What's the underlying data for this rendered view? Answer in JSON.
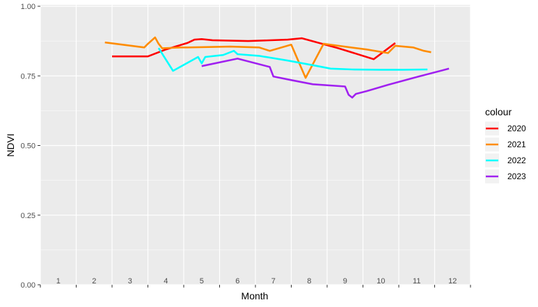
{
  "chart_data": {
    "type": "line",
    "title": "",
    "xlabel": "Month",
    "ylabel": "NDVI",
    "xlim": [
      0.5,
      12.5
    ],
    "ylim": [
      0,
      1
    ],
    "y_ticks": [
      {
        "value": 0,
        "label": "0.00"
      },
      {
        "value": 0.25,
        "label": "0.25"
      },
      {
        "value": 0.5,
        "label": "0.50"
      },
      {
        "value": 0.75,
        "label": "0.75"
      },
      {
        "value": 1,
        "label": "1.00"
      }
    ],
    "x_month_labels": [
      "1",
      "2",
      "3",
      "4",
      "5",
      "6",
      "7",
      "8",
      "9",
      "10",
      "11",
      "12"
    ],
    "grid": true,
    "legend": {
      "title": "colour",
      "position": "right"
    },
    "series": [
      {
        "name": "2020",
        "color": "#ff0000",
        "points": [
          [
            2.5,
            0.82
          ],
          [
            3.5,
            0.82
          ],
          [
            4.0,
            0.845
          ],
          [
            4.6,
            0.868
          ],
          [
            4.8,
            0.88
          ],
          [
            5.0,
            0.882
          ],
          [
            5.3,
            0.878
          ],
          [
            6.3,
            0.875
          ],
          [
            7.4,
            0.88
          ],
          [
            7.8,
            0.885
          ],
          [
            8.8,
            0.85
          ],
          [
            9.8,
            0.81
          ],
          [
            10.4,
            0.868
          ]
        ]
      },
      {
        "name": "2021",
        "color": "#ff8c00",
        "points": [
          [
            2.3,
            0.87
          ],
          [
            3.4,
            0.852
          ],
          [
            3.5,
            0.865
          ],
          [
            3.7,
            0.888
          ],
          [
            3.8,
            0.865
          ],
          [
            3.9,
            0.849
          ],
          [
            4.4,
            0.852
          ],
          [
            4.6,
            0.852
          ],
          [
            5.8,
            0.855
          ],
          [
            6.6,
            0.852
          ],
          [
            6.9,
            0.84
          ],
          [
            7.5,
            0.862
          ],
          [
            7.9,
            0.743
          ],
          [
            8.4,
            0.865
          ],
          [
            9.6,
            0.845
          ],
          [
            10.2,
            0.832
          ],
          [
            10.4,
            0.858
          ],
          [
            10.9,
            0.852
          ],
          [
            11.2,
            0.84
          ],
          [
            11.4,
            0.835
          ]
        ]
      },
      {
        "name": "2022",
        "color": "#00ffff",
        "points": [
          [
            3.8,
            0.85
          ],
          [
            4.2,
            0.768
          ],
          [
            4.9,
            0.818
          ],
          [
            5.0,
            0.795
          ],
          [
            5.1,
            0.818
          ],
          [
            5.6,
            0.825
          ],
          [
            5.8,
            0.835
          ],
          [
            5.9,
            0.84
          ],
          [
            6.0,
            0.828
          ],
          [
            6.6,
            0.822
          ],
          [
            7.4,
            0.805
          ],
          [
            8.2,
            0.786
          ],
          [
            8.6,
            0.776
          ],
          [
            9.2,
            0.773
          ],
          [
            10.0,
            0.772
          ],
          [
            10.6,
            0.772
          ],
          [
            11.3,
            0.773
          ]
        ]
      },
      {
        "name": "2023",
        "color": "#a020f0",
        "points": [
          [
            5.0,
            0.785
          ],
          [
            6.0,
            0.812
          ],
          [
            6.9,
            0.782
          ],
          [
            7.0,
            0.748
          ],
          [
            7.5,
            0.735
          ],
          [
            8.1,
            0.72
          ],
          [
            9.0,
            0.712
          ],
          [
            9.1,
            0.682
          ],
          [
            9.2,
            0.672
          ],
          [
            9.3,
            0.685
          ],
          [
            9.6,
            0.695
          ],
          [
            10.2,
            0.718
          ],
          [
            11.0,
            0.746
          ],
          [
            11.9,
            0.776
          ]
        ]
      }
    ]
  }
}
